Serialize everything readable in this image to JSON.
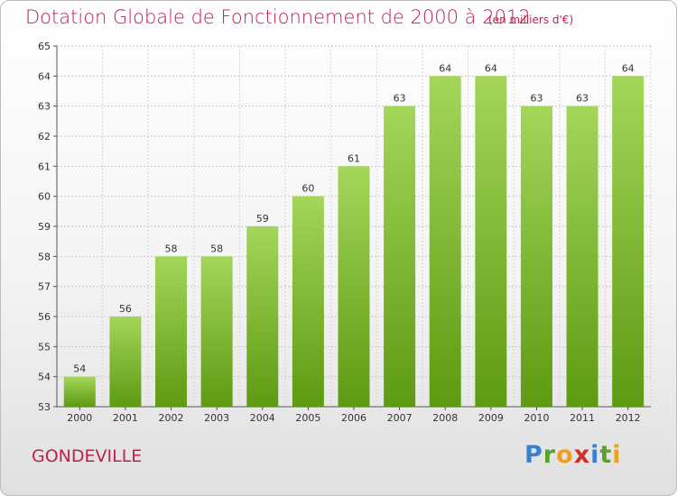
{
  "chart_data": {
    "type": "bar",
    "title": "Dotation Globale de Fonctionnement de 2000 à 2012",
    "subtitle": "(en milliers d'€)",
    "categories": [
      "2000",
      "2001",
      "2002",
      "2003",
      "2004",
      "2005",
      "2006",
      "2007",
      "2008",
      "2009",
      "2010",
      "2011",
      "2012"
    ],
    "values": [
      54,
      56,
      58,
      58,
      59,
      60,
      61,
      63,
      64,
      64,
      63,
      63,
      64
    ],
    "ylim": [
      53,
      65
    ],
    "yticks": [
      53,
      54,
      55,
      56,
      57,
      58,
      59,
      60,
      61,
      62,
      63,
      64,
      65
    ],
    "grid": true,
    "bar_color": "#7dbb2e"
  },
  "footer": {
    "place": "GONDEVILLE"
  },
  "logo": {
    "text": "Proxiti"
  }
}
